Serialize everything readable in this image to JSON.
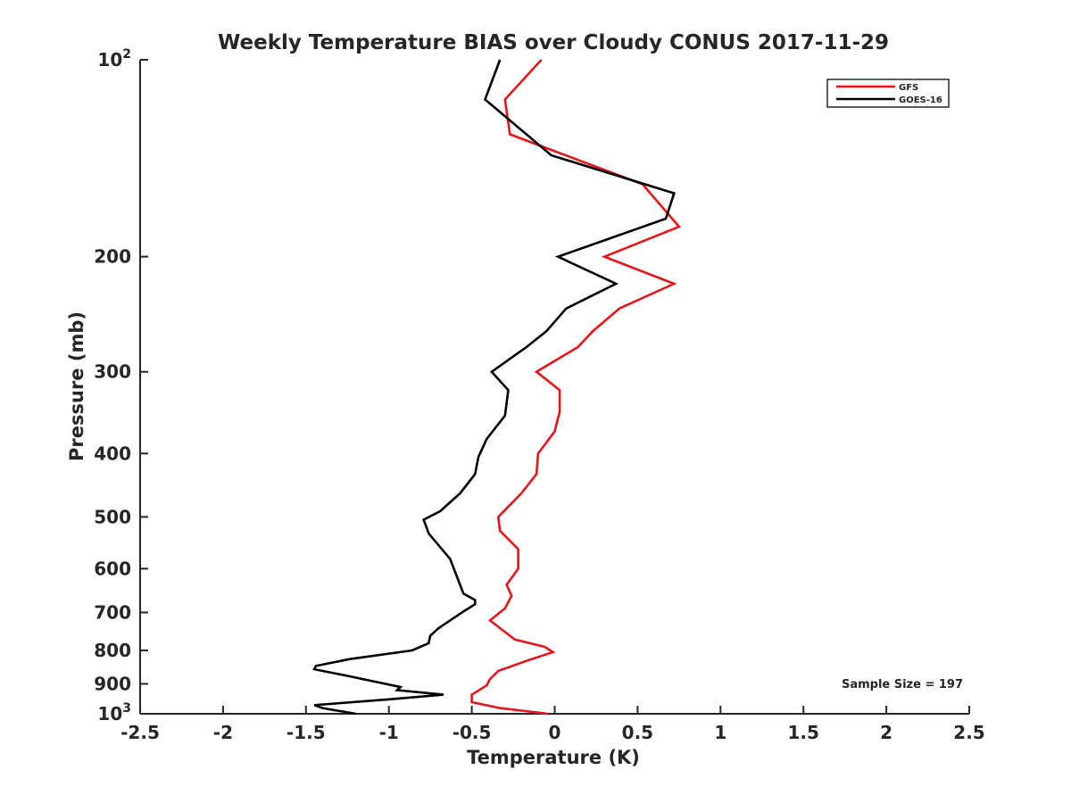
{
  "chart_data": {
    "type": "line",
    "title": "Weekly Temperature BIAS over Cloudy CONUS 2017-11-29",
    "xlabel": "Temperature (K)",
    "ylabel": "Pressure (mb)",
    "xlim": [
      -2.5,
      2.5
    ],
    "ylim": [
      100,
      1000
    ],
    "yscale": "log",
    "y_reversed": true,
    "grid": false,
    "legend_position": "top-right",
    "x_ticks": [
      "-2.5",
      "-2",
      "-1.5",
      "-1",
      "-0.5",
      "0",
      "0.5",
      "1",
      "1.5",
      "2",
      "2.5"
    ],
    "y_ticks": [
      {
        "value": 100,
        "base": "10",
        "exp": "2"
      },
      {
        "value": 200,
        "label": "200"
      },
      {
        "value": 300,
        "label": "300"
      },
      {
        "value": 400,
        "label": "400"
      },
      {
        "value": 500,
        "label": "500"
      },
      {
        "value": 600,
        "label": "600"
      },
      {
        "value": 700,
        "label": "700"
      },
      {
        "value": 800,
        "label": "800"
      },
      {
        "value": 900,
        "label": "900"
      },
      {
        "value": 1000,
        "base": "10",
        "exp": "3"
      }
    ],
    "series": [
      {
        "name": "GFS",
        "color": "#e8141b",
        "points": [
          [
            -0.08,
            100
          ],
          [
            -0.3,
            115
          ],
          [
            -0.27,
            130
          ],
          [
            0.53,
            155
          ],
          [
            0.75,
            180
          ],
          [
            0.3,
            200
          ],
          [
            0.72,
            220
          ],
          [
            0.39,
            240
          ],
          [
            0.23,
            260
          ],
          [
            0.14,
            275
          ],
          [
            -0.11,
            300
          ],
          [
            0.03,
            320
          ],
          [
            0.03,
            345
          ],
          [
            0.0,
            370
          ],
          [
            -0.1,
            400
          ],
          [
            -0.11,
            430
          ],
          [
            -0.2,
            460
          ],
          [
            -0.34,
            500
          ],
          [
            -0.33,
            525
          ],
          [
            -0.22,
            560
          ],
          [
            -0.22,
            600
          ],
          [
            -0.29,
            635
          ],
          [
            -0.26,
            660
          ],
          [
            -0.3,
            690
          ],
          [
            -0.39,
            720
          ],
          [
            -0.24,
            770
          ],
          [
            -0.06,
            790
          ],
          [
            -0.01,
            805
          ],
          [
            -0.17,
            830
          ],
          [
            -0.34,
            860
          ],
          [
            -0.39,
            885
          ],
          [
            -0.41,
            905
          ],
          [
            -0.5,
            935
          ],
          [
            -0.5,
            960
          ],
          [
            -0.33,
            980
          ],
          [
            -0.04,
            1000
          ]
        ]
      },
      {
        "name": "GOES-16",
        "color": "#000000",
        "points": [
          [
            -0.33,
            100
          ],
          [
            -0.42,
            115
          ],
          [
            -0.02,
            140
          ],
          [
            0.72,
            160
          ],
          [
            0.67,
            175
          ],
          [
            0.02,
            200
          ],
          [
            0.37,
            220
          ],
          [
            0.07,
            240
          ],
          [
            -0.05,
            260
          ],
          [
            -0.17,
            275
          ],
          [
            -0.38,
            300
          ],
          [
            -0.28,
            320
          ],
          [
            -0.3,
            350
          ],
          [
            -0.41,
            380
          ],
          [
            -0.46,
            405
          ],
          [
            -0.48,
            430
          ],
          [
            -0.57,
            460
          ],
          [
            -0.69,
            490
          ],
          [
            -0.79,
            505
          ],
          [
            -0.76,
            530
          ],
          [
            -0.63,
            580
          ],
          [
            -0.55,
            655
          ],
          [
            -0.48,
            670
          ],
          [
            -0.48,
            680
          ],
          [
            -0.56,
            700
          ],
          [
            -0.7,
            740
          ],
          [
            -0.75,
            760
          ],
          [
            -0.76,
            780
          ],
          [
            -0.86,
            800
          ],
          [
            -1.24,
            825
          ],
          [
            -1.44,
            845
          ],
          [
            -1.45,
            855
          ],
          [
            -1.25,
            875
          ],
          [
            -0.93,
            910
          ],
          [
            -0.95,
            920
          ],
          [
            -0.67,
            935
          ],
          [
            -0.99,
            950
          ],
          [
            -1.45,
            970
          ],
          [
            -1.4,
            980
          ],
          [
            -1.2,
            1000
          ]
        ]
      }
    ],
    "annotations": [
      {
        "text": "Sample Size = 197",
        "x": 2.3,
        "y": 900
      }
    ]
  }
}
